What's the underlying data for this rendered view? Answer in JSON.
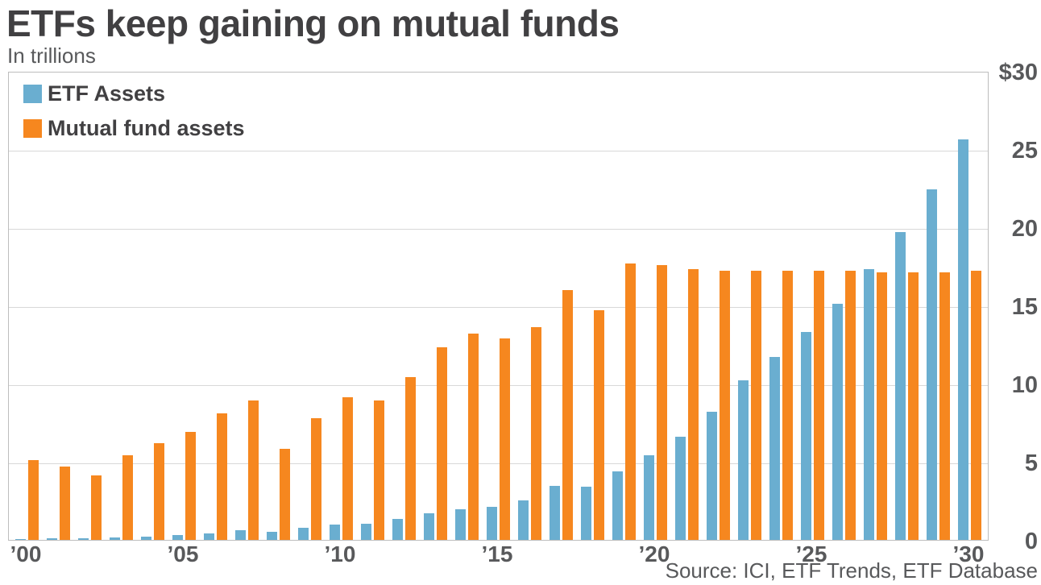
{
  "header": {
    "title": "ETFs keep gaining on mutual funds",
    "subtitle": "In trillions"
  },
  "footer": {
    "source": "Source: ICI, ETF Trends, ETF Database"
  },
  "legend": [
    {
      "label": "ETF Assets",
      "color": "#6aaed0"
    },
    {
      "label": "Mutual fund assets",
      "color": "#f6871f"
    }
  ],
  "colors": {
    "etf_blue": "#6aaed0",
    "mutual_fund_orange": "#f6871f",
    "title_text": "#414042",
    "axis_text": "#58595b",
    "gridline": "#d8d8d8",
    "plot_border": "#bdbdbd",
    "background": "#ffffff"
  },
  "chart_data": {
    "type": "bar",
    "title": "ETFs keep gaining on mutual funds",
    "subtitle": "In trillions",
    "units": "trillions USD",
    "categories": [
      2000,
      2001,
      2002,
      2003,
      2004,
      2005,
      2006,
      2007,
      2008,
      2009,
      2010,
      2011,
      2012,
      2013,
      2014,
      2015,
      2016,
      2017,
      2018,
      2019,
      2020,
      2021,
      2022,
      2023,
      2024,
      2025,
      2026,
      2027,
      2028,
      2029,
      2030
    ],
    "series": [
      {
        "name": "ETF Assets",
        "color": "#6aaed0",
        "values": [
          0.07,
          0.08,
          0.1,
          0.15,
          0.23,
          0.3,
          0.43,
          0.61,
          0.53,
          0.78,
          1.0,
          1.05,
          1.34,
          1.68,
          1.97,
          2.1,
          2.55,
          3.45,
          3.4,
          4.4,
          5.4,
          6.6,
          8.2,
          10.2,
          11.7,
          13.3,
          15.1,
          17.3,
          19.7,
          22.4,
          25.6
        ]
      },
      {
        "name": "Mutual fund assets",
        "color": "#f6871f",
        "values": [
          5.1,
          4.7,
          4.1,
          5.4,
          6.2,
          6.9,
          8.1,
          8.9,
          5.8,
          7.8,
          9.1,
          8.9,
          10.4,
          12.3,
          13.2,
          12.9,
          13.6,
          16.0,
          14.7,
          17.7,
          17.6,
          17.3,
          17.2,
          17.2,
          17.2,
          17.2,
          17.2,
          17.1,
          17.1,
          17.1,
          17.2
        ]
      }
    ],
    "ylim": [
      0,
      30
    ],
    "y_ticks": [
      {
        "value": 30,
        "label": "$30"
      },
      {
        "value": 25,
        "label": "25"
      },
      {
        "value": 20,
        "label": "20"
      },
      {
        "value": 15,
        "label": "15"
      },
      {
        "value": 10,
        "label": "10"
      },
      {
        "value": 5,
        "label": "5"
      },
      {
        "value": 0,
        "label": "0"
      }
    ],
    "gridline_values": [
      5,
      10,
      15,
      20,
      25
    ],
    "x_ticks": [
      {
        "year": 2000,
        "label": "’00"
      },
      {
        "year": 2005,
        "label": "’05"
      },
      {
        "year": 2010,
        "label": "’10"
      },
      {
        "year": 2015,
        "label": "’15"
      },
      {
        "year": 2020,
        "label": "’20"
      },
      {
        "year": 2025,
        "label": "’25"
      },
      {
        "year": 2030,
        "label": "’30"
      }
    ],
    "legend_position": "top-left",
    "y_axis_position": "right",
    "grid": true
  }
}
